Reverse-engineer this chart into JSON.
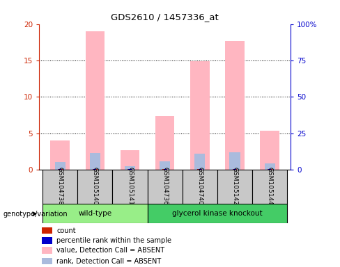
{
  "title": "GDS2610 / 1457336_at",
  "samples": [
    "GSM104738",
    "GSM105140",
    "GSM105141",
    "GSM104736",
    "GSM104740",
    "GSM105142",
    "GSM105144"
  ],
  "pink_bar_heights": [
    4.0,
    19.0,
    2.7,
    7.3,
    14.9,
    17.7,
    5.3
  ],
  "light_blue_bar_heights": [
    1.0,
    2.3,
    0.5,
    1.1,
    2.2,
    2.4,
    0.8
  ],
  "red_bar_heights": [
    0.12,
    0.12,
    0.12,
    0.12,
    0.12,
    0.12,
    0.12
  ],
  "blue_bar_heights": [
    0.06,
    0.06,
    0.06,
    0.06,
    0.06,
    0.06,
    0.06
  ],
  "ylim_left": [
    0,
    20
  ],
  "ylim_right": [
    0,
    100
  ],
  "yticks_left": [
    0,
    5,
    10,
    15,
    20
  ],
  "yticks_right": [
    0,
    25,
    50,
    75,
    100
  ],
  "bar_width": 0.55,
  "left_axis_color": "#CC2200",
  "right_axis_color": "#0000CC",
  "sample_box_color": "#C8C8C8",
  "wt_color": "#98EE88",
  "gk_color": "#44CC66",
  "wt_label": "wild-type",
  "gk_label": "glycerol kinase knockout",
  "wt_samples": [
    0,
    1,
    2
  ],
  "gk_samples": [
    3,
    4,
    5,
    6
  ],
  "legend_items": [
    {
      "label": "count",
      "color": "#CC2200"
    },
    {
      "label": "percentile rank within the sample",
      "color": "#0000CC"
    },
    {
      "label": "value, Detection Call = ABSENT",
      "color": "#FFB6C1"
    },
    {
      "label": "rank, Detection Call = ABSENT",
      "color": "#AABBDD"
    }
  ],
  "genotype_label": "genotype/variation"
}
